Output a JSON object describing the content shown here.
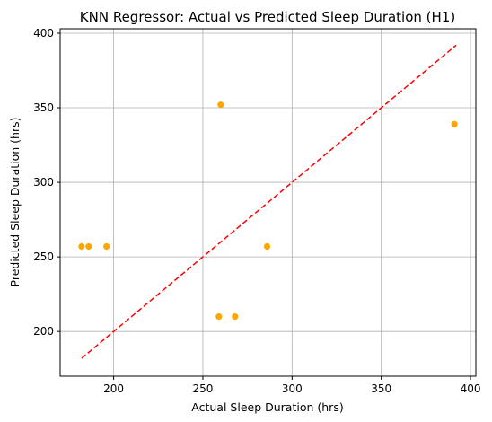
{
  "chart_data": {
    "type": "scatter",
    "title": "KNN Regressor: Actual vs Predicted Sleep Duration (H1)",
    "xlabel": "Actual Sleep Duration (hrs)",
    "ylabel": "Predicted Sleep Duration (hrs)",
    "xlim": [
      170,
      403
    ],
    "ylim": [
      170,
      403
    ],
    "x_ticks": [
      200,
      250,
      300,
      350,
      400
    ],
    "y_ticks": [
      200,
      250,
      300,
      350,
      400
    ],
    "grid": true,
    "points": [
      {
        "x": 182,
        "y": 257
      },
      {
        "x": 186,
        "y": 257
      },
      {
        "x": 196,
        "y": 257
      },
      {
        "x": 259,
        "y": 210
      },
      {
        "x": 268,
        "y": 210
      },
      {
        "x": 260,
        "y": 352
      },
      {
        "x": 286,
        "y": 257
      },
      {
        "x": 391,
        "y": 339
      }
    ],
    "reference_line": {
      "x": [
        182,
        392
      ],
      "y": [
        182,
        392
      ]
    },
    "colors": {
      "points": "#ffa500",
      "reference_line": "#ff0000",
      "grid": "#b0b0b0",
      "axes": "#000000"
    }
  }
}
